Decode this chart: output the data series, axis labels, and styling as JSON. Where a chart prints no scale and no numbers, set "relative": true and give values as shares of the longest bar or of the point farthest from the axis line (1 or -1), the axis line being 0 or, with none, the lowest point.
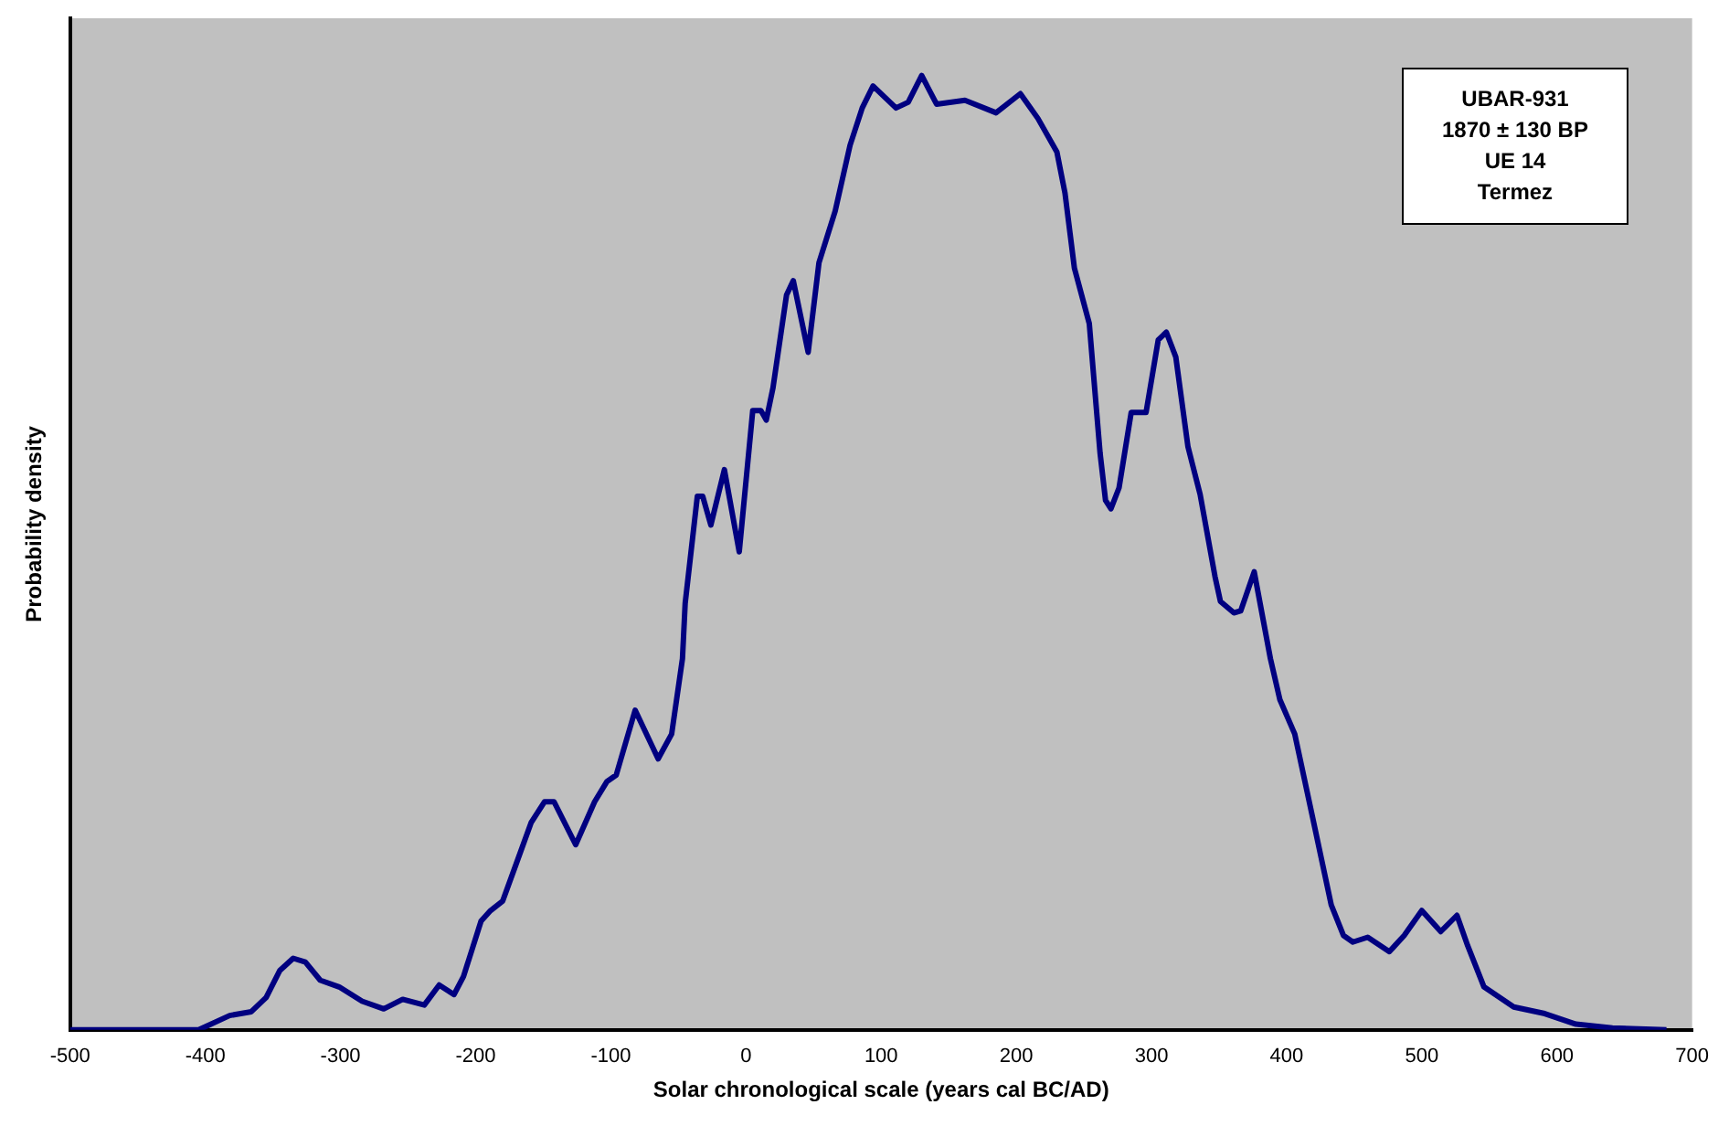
{
  "chart_data": {
    "type": "line",
    "xlabel": "Solar chronological scale (years cal BC/AD)",
    "ylabel": "Probability density",
    "relative": true,
    "xlim": [
      -500,
      700
    ],
    "xticks": [
      -500,
      -400,
      -300,
      -200,
      -100,
      0,
      100,
      200,
      300,
      400,
      500,
      600,
      700
    ],
    "grid": false,
    "legend": false,
    "marker": "none",
    "line_style": "solid",
    "annotations": [
      "UBAR-931",
      "1870 ± 130 BP",
      "UE 14",
      "Termez"
    ],
    "series": [
      {
        "color": "#000080",
        "x": [
          -500,
          -405,
          -382,
          -366,
          -355,
          -345,
          -335,
          -326,
          -315,
          -301,
          -284,
          -268,
          -254,
          -238,
          -227,
          -216,
          -209,
          -196,
          -189,
          -180,
          -170,
          -159,
          -149,
          -142,
          -126,
          -112,
          -103,
          -96,
          -82,
          -65,
          -55,
          -47,
          -45,
          -36,
          -32,
          -26,
          -16,
          -5,
          5,
          11,
          15,
          20,
          30,
          35,
          46,
          54,
          66,
          77,
          86,
          94,
          111,
          120,
          130,
          141,
          162,
          185,
          203,
          216,
          230,
          236,
          243,
          254,
          262,
          266,
          270,
          276,
          285,
          296,
          305,
          311,
          318,
          327,
          336,
          347,
          351,
          361,
          366,
          376,
          388,
          395,
          406,
          419,
          433,
          442,
          449,
          460,
          476,
          487,
          500,
          514,
          526,
          534,
          546,
          568,
          591,
          614,
          641,
          681
        ],
        "values": [
          0,
          0,
          0.015,
          0.019,
          0.034,
          0.062,
          0.075,
          0.071,
          0.052,
          0.045,
          0.03,
          0.022,
          0.032,
          0.026,
          0.047,
          0.037,
          0.056,
          0.114,
          0.125,
          0.135,
          0.174,
          0.217,
          0.239,
          0.239,
          0.194,
          0.239,
          0.26,
          0.267,
          0.335,
          0.284,
          0.31,
          0.389,
          0.447,
          0.559,
          0.559,
          0.529,
          0.587,
          0.501,
          0.649,
          0.649,
          0.639,
          0.673,
          0.77,
          0.785,
          0.71,
          0.804,
          0.858,
          0.927,
          0.966,
          0.989,
          0.966,
          0.972,
          1,
          0.97,
          0.974,
          0.961,
          0.981,
          0.955,
          0.92,
          0.877,
          0.798,
          0.74,
          0.604,
          0.555,
          0.546,
          0.568,
          0.647,
          0.647,
          0.723,
          0.731,
          0.705,
          0.611,
          0.561,
          0.475,
          0.449,
          0.437,
          0.439,
          0.48,
          0.389,
          0.346,
          0.31,
          0.224,
          0.131,
          0.099,
          0.092,
          0.097,
          0.082,
          0.099,
          0.125,
          0.103,
          0.12,
          0.088,
          0.045,
          0.024,
          0.017,
          0.006,
          0.002,
          0
        ]
      }
    ]
  }
}
